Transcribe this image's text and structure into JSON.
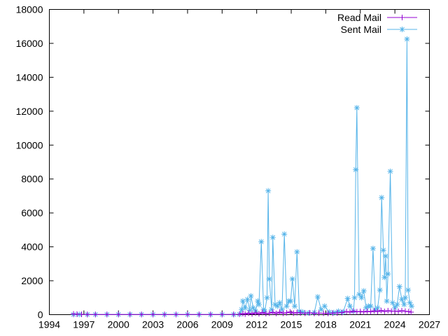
{
  "chart_data": {
    "type": "line",
    "title": "",
    "xlabel": "",
    "ylabel": "",
    "xlim": [
      1994,
      2027
    ],
    "ylim": [
      0,
      18000
    ],
    "xticks": [
      1994,
      1997,
      2000,
      2003,
      2006,
      2009,
      2012,
      2015,
      2018,
      2021,
      2024,
      2027
    ],
    "yticks": [
      0,
      2000,
      4000,
      6000,
      8000,
      10000,
      12000,
      14000,
      16000,
      18000
    ],
    "grid": false,
    "legend_position": "top-right",
    "series": [
      {
        "name": "Read Mail",
        "color": "#9400d3",
        "marker": "plus",
        "points": [
          [
            1996.1,
            40
          ],
          [
            1996.4,
            30
          ],
          [
            1996.8,
            20
          ],
          [
            1997.3,
            10
          ],
          [
            1998,
            10
          ],
          [
            1999,
            10
          ],
          [
            2000,
            10
          ],
          [
            2001,
            10
          ],
          [
            2002,
            10
          ],
          [
            2003,
            10
          ],
          [
            2004,
            10
          ],
          [
            2005,
            10
          ],
          [
            2006,
            10
          ],
          [
            2007,
            10
          ],
          [
            2008,
            10
          ],
          [
            2009,
            10
          ],
          [
            2010,
            15
          ],
          [
            2010.5,
            20
          ],
          [
            2010.8,
            60
          ],
          [
            2011.0,
            30
          ],
          [
            2011.3,
            90
          ],
          [
            2011.6,
            40
          ],
          [
            2011.9,
            110
          ],
          [
            2012.2,
            50
          ],
          [
            2012.5,
            130
          ],
          [
            2012.8,
            60
          ],
          [
            2013.1,
            90
          ],
          [
            2013.4,
            140
          ],
          [
            2013.7,
            70
          ],
          [
            2014.0,
            150
          ],
          [
            2014.3,
            80
          ],
          [
            2014.6,
            110
          ],
          [
            2014.9,
            160
          ],
          [
            2015.2,
            90
          ],
          [
            2015.5,
            120
          ],
          [
            2015.8,
            100
          ],
          [
            2016.2,
            80
          ],
          [
            2016.6,
            110
          ],
          [
            2017.0,
            70
          ],
          [
            2017.4,
            90
          ],
          [
            2017.8,
            80
          ],
          [
            2018.2,
            70
          ],
          [
            2018.6,
            90
          ],
          [
            2019.0,
            100
          ],
          [
            2019.4,
            120
          ],
          [
            2019.8,
            180
          ],
          [
            2020.1,
            150
          ],
          [
            2020.4,
            210
          ],
          [
            2020.7,
            170
          ],
          [
            2021.0,
            190
          ],
          [
            2021.3,
            160
          ],
          [
            2021.6,
            200
          ],
          [
            2021.9,
            170
          ],
          [
            2022.2,
            220
          ],
          [
            2022.5,
            180
          ],
          [
            2022.8,
            240
          ],
          [
            2023.1,
            190
          ],
          [
            2023.4,
            230
          ],
          [
            2023.7,
            200
          ],
          [
            2024.0,
            210
          ],
          [
            2024.3,
            190
          ],
          [
            2024.6,
            230
          ],
          [
            2024.9,
            200
          ],
          [
            2025.2,
            180
          ],
          [
            2025.4,
            150
          ]
        ]
      },
      {
        "name": "Sent Mail",
        "color": "#56b4e9",
        "marker": "star",
        "points": [
          [
            1996.1,
            10
          ],
          [
            1996.6,
            10
          ],
          [
            1997.3,
            10
          ],
          [
            1998,
            10
          ],
          [
            1999,
            10
          ],
          [
            2000,
            10
          ],
          [
            2001,
            10
          ],
          [
            2002,
            10
          ],
          [
            2003,
            10
          ],
          [
            2004,
            10
          ],
          [
            2005,
            10
          ],
          [
            2006,
            10
          ],
          [
            2007,
            10
          ],
          [
            2008,
            10
          ],
          [
            2009,
            10
          ],
          [
            2010,
            10
          ],
          [
            2010.5,
            20
          ],
          [
            2010.7,
            300
          ],
          [
            2010.8,
            800
          ],
          [
            2011.0,
            400
          ],
          [
            2011.2,
            900
          ],
          [
            2011.4,
            250
          ],
          [
            2011.5,
            1100
          ],
          [
            2011.7,
            400
          ],
          [
            2011.9,
            200
          ],
          [
            2012.1,
            800
          ],
          [
            2012.2,
            600
          ],
          [
            2012.4,
            4300
          ],
          [
            2012.6,
            300
          ],
          [
            2012.7,
            200
          ],
          [
            2012.9,
            1000
          ],
          [
            2013.0,
            7300
          ],
          [
            2013.1,
            2100
          ],
          [
            2013.3,
            300
          ],
          [
            2013.4,
            4550
          ],
          [
            2013.6,
            600
          ],
          [
            2013.8,
            500
          ],
          [
            2014.0,
            700
          ],
          [
            2014.2,
            300
          ],
          [
            2014.4,
            4750
          ],
          [
            2014.6,
            500
          ],
          [
            2014.8,
            800
          ],
          [
            2014.95,
            800
          ],
          [
            2015.1,
            2100
          ],
          [
            2015.3,
            500
          ],
          [
            2015.5,
            3700
          ],
          [
            2015.7,
            200
          ],
          [
            2016.0,
            150
          ],
          [
            2016.5,
            100
          ],
          [
            2017.0,
            120
          ],
          [
            2017.3,
            1050
          ],
          [
            2017.6,
            300
          ],
          [
            2017.9,
            500
          ],
          [
            2018.3,
            150
          ],
          [
            2018.7,
            120
          ],
          [
            2019.1,
            200
          ],
          [
            2019.5,
            150
          ],
          [
            2019.9,
            950
          ],
          [
            2020.1,
            500
          ],
          [
            2020.4,
            200
          ],
          [
            2020.5,
            1000
          ],
          [
            2020.6,
            8550
          ],
          [
            2020.7,
            12200
          ],
          [
            2020.9,
            1200
          ],
          [
            2021.1,
            1000
          ],
          [
            2021.3,
            1400
          ],
          [
            2021.5,
            400
          ],
          [
            2021.7,
            500
          ],
          [
            2021.9,
            500
          ],
          [
            2022.1,
            3900
          ],
          [
            2022.3,
            300
          ],
          [
            2022.5,
            400
          ],
          [
            2022.7,
            1450
          ],
          [
            2022.85,
            6900
          ],
          [
            2023.0,
            3800
          ],
          [
            2023.1,
            2200
          ],
          [
            2023.2,
            3450
          ],
          [
            2023.3,
            800
          ],
          [
            2023.4,
            2400
          ],
          [
            2023.6,
            8450
          ],
          [
            2023.8,
            700
          ],
          [
            2024.0,
            400
          ],
          [
            2024.2,
            600
          ],
          [
            2024.4,
            1650
          ],
          [
            2024.6,
            900
          ],
          [
            2024.8,
            600
          ],
          [
            2024.9,
            1000
          ],
          [
            2025.05,
            16250
          ],
          [
            2025.15,
            1450
          ],
          [
            2025.3,
            700
          ],
          [
            2025.45,
            500
          ]
        ]
      }
    ]
  }
}
